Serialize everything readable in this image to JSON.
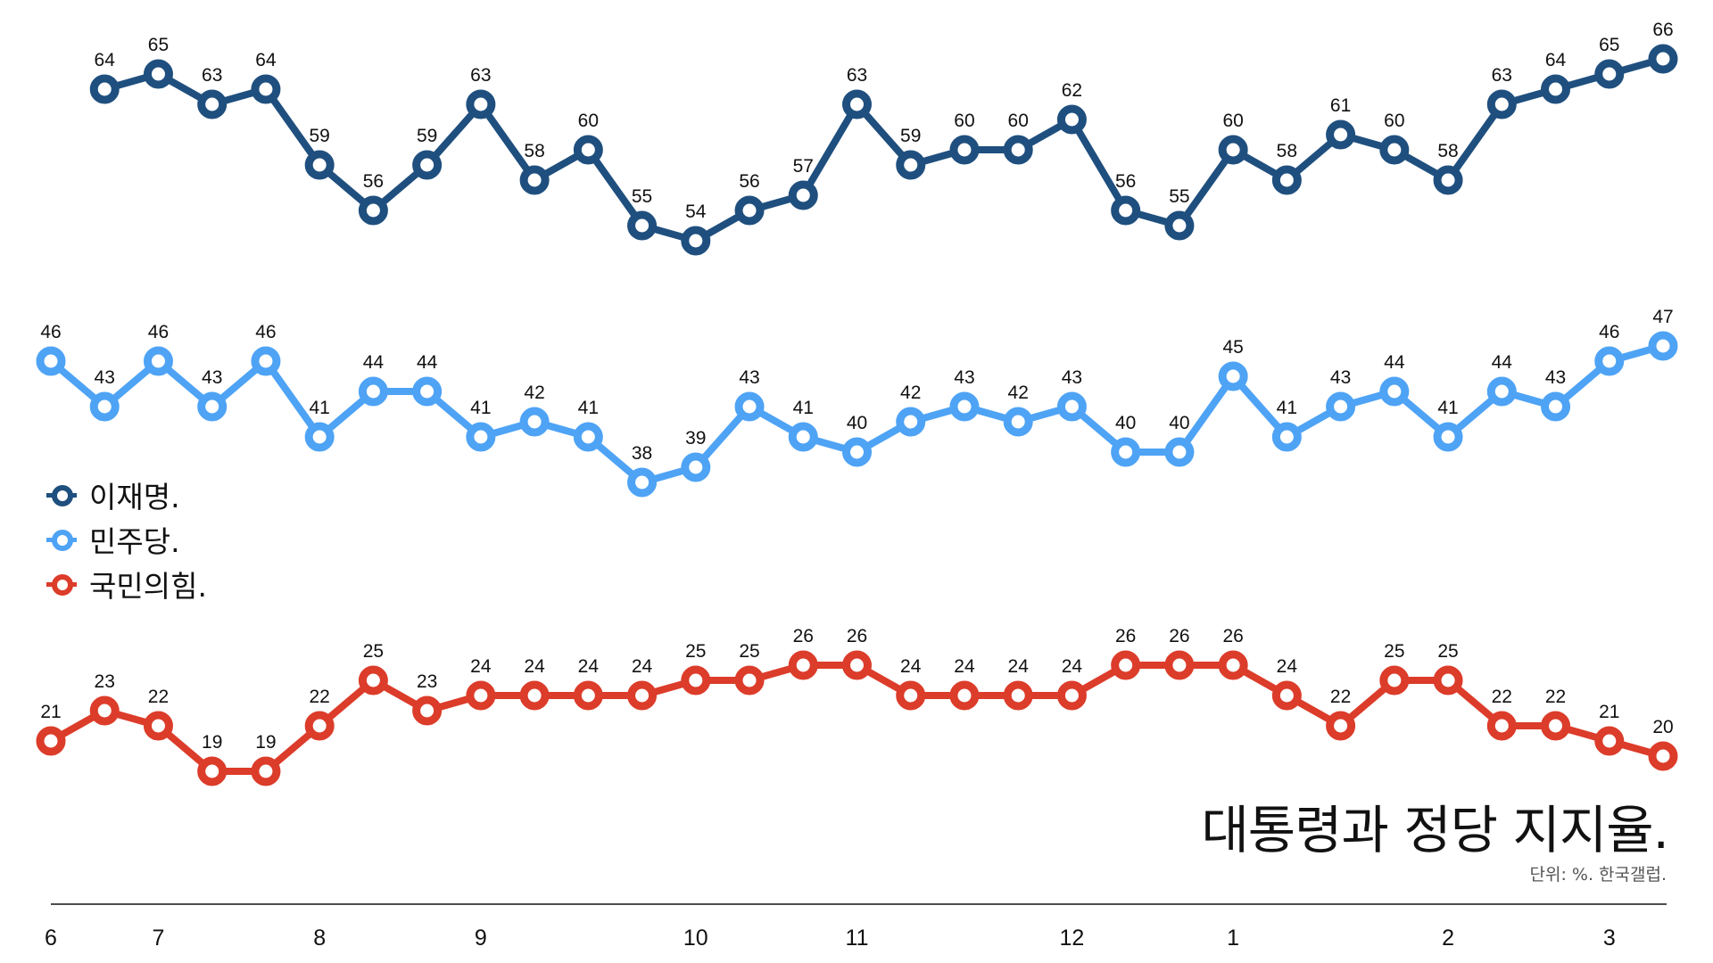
{
  "chart_data": {
    "type": "line",
    "title": "대통령과 정당 지지율.",
    "subtitle": "단위: %. 한국갤럽.",
    "xlabel": "",
    "ylabel": "",
    "grid": false,
    "legend_position": "left-middle",
    "x_ticks": [
      {
        "index": 0,
        "label": "6"
      },
      {
        "index": 2,
        "label": "7"
      },
      {
        "index": 5,
        "label": "8"
      },
      {
        "index": 8,
        "label": "9"
      },
      {
        "index": 12,
        "label": "10"
      },
      {
        "index": 15,
        "label": "11"
      },
      {
        "index": 19,
        "label": "12"
      },
      {
        "index": 22,
        "label": "1"
      },
      {
        "index": 26,
        "label": "2"
      },
      {
        "index": 29,
        "label": "3"
      }
    ],
    "point_count": 31,
    "series": [
      {
        "name": "이재명.",
        "color": "#1f4f7e",
        "start_index": 1,
        "values": [
          64,
          65,
          63,
          64,
          59,
          56,
          59,
          63,
          58,
          60,
          55,
          54,
          56,
          57,
          63,
          59,
          60,
          60,
          62,
          56,
          55,
          60,
          58,
          61,
          60,
          58,
          63,
          64,
          65,
          66
        ]
      },
      {
        "name": "민주당.",
        "color": "#4ea3f5",
        "start_index": 0,
        "values": [
          46,
          43,
          46,
          43,
          46,
          41,
          44,
          44,
          41,
          42,
          41,
          38,
          39,
          43,
          41,
          40,
          42,
          43,
          42,
          43,
          40,
          40,
          45,
          41,
          43,
          44,
          41,
          44,
          43,
          46,
          47
        ]
      },
      {
        "name": "국민의힘.",
        "color": "#dc3c2a",
        "start_index": 0,
        "values": [
          21,
          23,
          22,
          19,
          19,
          22,
          25,
          23,
          24,
          24,
          24,
          24,
          25,
          25,
          26,
          26,
          24,
          24,
          24,
          24,
          26,
          26,
          26,
          24,
          22,
          25,
          25,
          22,
          22,
          21,
          20
        ]
      }
    ]
  }
}
